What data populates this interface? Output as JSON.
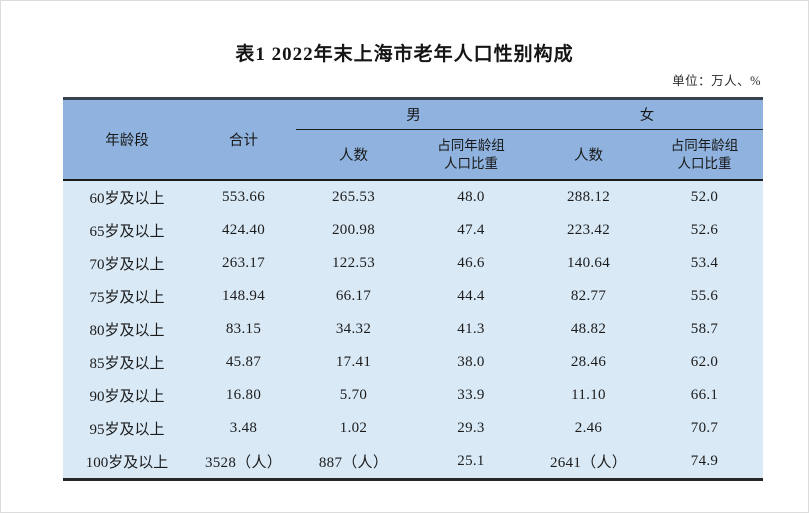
{
  "page": {
    "title": "表1  2022年末上海市老年人口性别构成",
    "unit_note": "单位：万人、%"
  },
  "colors": {
    "header_bg": "#8fb3de",
    "body_bg": "#d9e9f6",
    "top_rule": "#38414f",
    "black_rule": "#1c1c1c"
  },
  "table": {
    "header": {
      "age_group": "年龄段",
      "total": "合计",
      "male": "男",
      "female": "女",
      "count": "人数",
      "share_line1": "占同年龄组",
      "share_line2": "人口比重"
    },
    "rows": [
      {
        "age": "60岁及以上",
        "total": "553.66",
        "male_count": "265.53",
        "male_pct": "48.0",
        "female_count": "288.12",
        "female_pct": "52.0"
      },
      {
        "age": "65岁及以上",
        "total": "424.40",
        "male_count": "200.98",
        "male_pct": "47.4",
        "female_count": "223.42",
        "female_pct": "52.6"
      },
      {
        "age": "70岁及以上",
        "total": "263.17",
        "male_count": "122.53",
        "male_pct": "46.6",
        "female_count": "140.64",
        "female_pct": "53.4"
      },
      {
        "age": "75岁及以上",
        "total": "148.94",
        "male_count": "66.17",
        "male_pct": "44.4",
        "female_count": "82.77",
        "female_pct": "55.6"
      },
      {
        "age": "80岁及以上",
        "total": "83.15",
        "male_count": "34.32",
        "male_pct": "41.3",
        "female_count": "48.82",
        "female_pct": "58.7"
      },
      {
        "age": "85岁及以上",
        "total": "45.87",
        "male_count": "17.41",
        "male_pct": "38.0",
        "female_count": "28.46",
        "female_pct": "62.0"
      },
      {
        "age": "90岁及以上",
        "total": "16.80",
        "male_count": "5.70",
        "male_pct": "33.9",
        "female_count": "11.10",
        "female_pct": "66.1"
      },
      {
        "age": "95岁及以上",
        "total": "3.48",
        "male_count": "1.02",
        "male_pct": "29.3",
        "female_count": "2.46",
        "female_pct": "70.7"
      },
      {
        "age": "100岁及以上",
        "total": "3528（人）",
        "male_count": "887（人）",
        "male_pct": "25.1",
        "female_count": "2641（人）",
        "female_pct": "74.9"
      }
    ]
  }
}
